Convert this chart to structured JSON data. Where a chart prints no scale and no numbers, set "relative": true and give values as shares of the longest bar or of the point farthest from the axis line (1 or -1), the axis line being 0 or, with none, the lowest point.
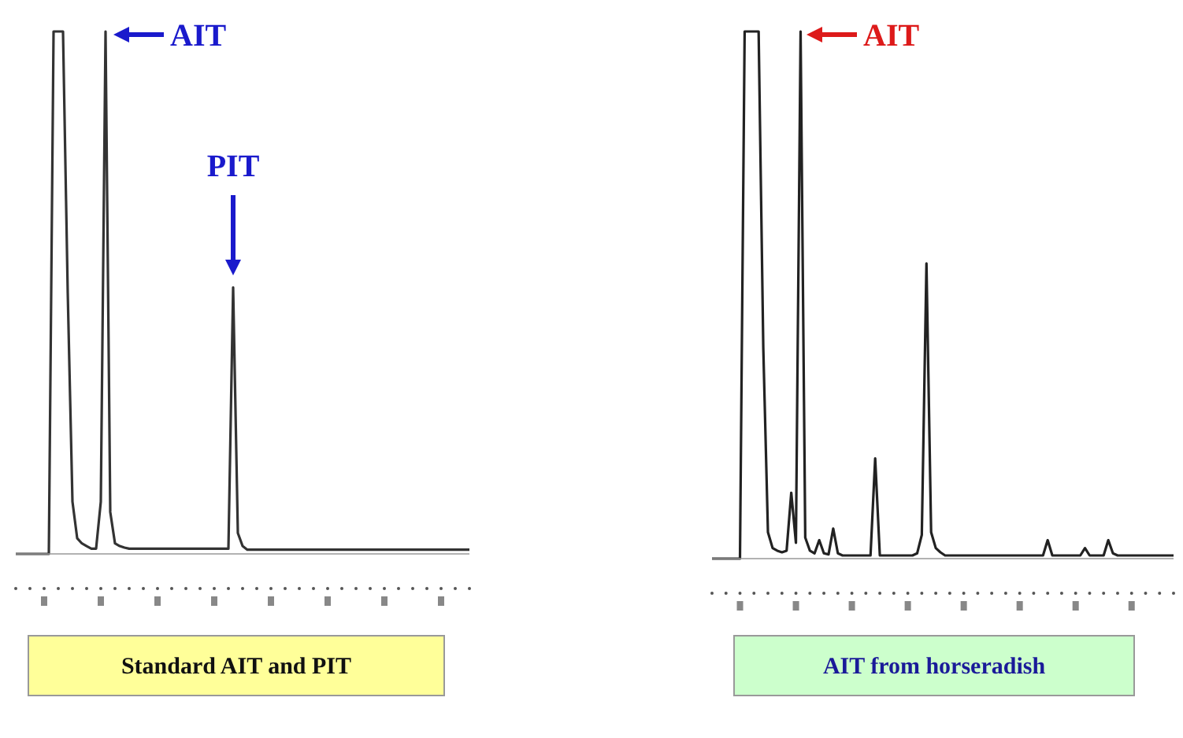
{
  "chart_data": [
    {
      "type": "line",
      "relative": true,
      "title": "Standard AIT and PIT",
      "annotations": [
        "AIT",
        "PIT"
      ],
      "marker": "none",
      "categories": [
        null,
        null,
        null,
        null,
        null,
        null,
        null,
        null,
        null,
        null,
        null,
        null,
        null,
        null,
        null,
        null,
        null,
        null,
        null,
        null,
        null,
        null,
        null,
        null,
        null,
        null,
        null,
        null,
        null,
        null,
        null,
        null,
        null,
        null,
        null,
        null,
        null,
        null,
        null,
        null,
        null,
        null,
        null,
        null,
        null,
        null,
        null,
        null,
        null,
        null,
        null,
        null,
        null,
        null,
        null,
        null,
        null,
        null,
        null,
        null,
        null,
        null,
        null,
        null,
        null,
        null,
        null,
        null,
        null,
        null,
        null,
        null,
        null,
        null,
        null,
        null,
        null,
        null,
        null,
        null,
        null,
        null,
        null,
        null,
        null,
        null,
        null,
        null,
        null,
        null,
        null,
        null,
        null,
        null,
        null,
        null,
        null
      ],
      "series": [
        {
          "color": "#333333",
          "values": [
            0,
            0,
            0,
            0,
            0,
            0,
            0,
            0,
            1,
            1,
            1,
            0.5,
            0.1,
            0.03,
            0.02,
            0.015,
            0.01,
            0.01,
            0.1,
            1,
            0.08,
            0.02,
            0.015,
            0.012,
            0.01,
            0.01,
            0.01,
            0.01,
            0.01,
            0.01,
            0.01,
            0.01,
            0.01,
            0.01,
            0.01,
            0.01,
            0.01,
            0.01,
            0.01,
            0.01,
            0.01,
            0.01,
            0.01,
            0.01,
            0.01,
            0.01,
            0.51,
            0.04,
            0.015,
            0.008,
            0.008,
            0.008,
            0.008,
            0.008,
            0.008,
            0.008,
            0.008,
            0.008,
            0.008,
            0.008,
            0.008,
            0.008,
            0.008,
            0.008,
            0.008,
            0.008,
            0.008,
            0.008,
            0.008,
            0.008,
            0.008,
            0.008,
            0.008,
            0.008,
            0.008,
            0.008,
            0.008,
            0.008,
            0.008,
            0.008,
            0.008,
            0.008,
            0.008,
            0.008,
            0.008,
            0.008,
            0.008,
            0.008,
            0.008,
            0.008,
            0.008,
            0.008,
            0.008,
            0.008,
            0.008,
            0.008,
            0.008
          ]
        }
      ]
    },
    {
      "type": "line",
      "relative": true,
      "title": "AIT from horseradish",
      "annotations": [
        "AIT"
      ],
      "marker": "none",
      "categories": [
        null,
        null,
        null,
        null,
        null,
        null,
        null,
        null,
        null,
        null,
        null,
        null,
        null,
        null,
        null,
        null,
        null,
        null,
        null,
        null,
        null,
        null,
        null,
        null,
        null,
        null,
        null,
        null,
        null,
        null,
        null,
        null,
        null,
        null,
        null,
        null,
        null,
        null,
        null,
        null,
        null,
        null,
        null,
        null,
        null,
        null,
        null,
        null,
        null,
        null,
        null,
        null,
        null,
        null,
        null,
        null,
        null,
        null,
        null,
        null,
        null,
        null,
        null,
        null,
        null,
        null,
        null,
        null,
        null,
        null,
        null,
        null,
        null,
        null,
        null,
        null,
        null,
        null,
        null,
        null,
        null,
        null,
        null,
        null,
        null,
        null,
        null,
        null,
        null,
        null,
        null,
        null,
        null,
        null,
        null,
        null,
        null,
        null,
        null,
        null
      ],
      "series": [
        {
          "color": "#222222",
          "values": [
            0,
            0,
            0,
            0,
            0,
            0,
            0,
            1,
            1,
            1,
            1,
            0.4,
            0.05,
            0.02,
            0.015,
            0.012,
            0.015,
            0.125,
            0.03,
            1,
            0.04,
            0.015,
            0.01,
            0.035,
            0.01,
            0.008,
            0.057,
            0.01,
            0.006,
            0.006,
            0.006,
            0.006,
            0.006,
            0.006,
            0.006,
            0.19,
            0.006,
            0.006,
            0.006,
            0.006,
            0.006,
            0.006,
            0.006,
            0.006,
            0.01,
            0.045,
            0.56,
            0.05,
            0.02,
            0.012,
            0.006,
            0.006,
            0.006,
            0.006,
            0.006,
            0.006,
            0.006,
            0.006,
            0.006,
            0.006,
            0.006,
            0.006,
            0.006,
            0.006,
            0.006,
            0.006,
            0.006,
            0.006,
            0.006,
            0.006,
            0.006,
            0.006,
            0.035,
            0.006,
            0.006,
            0.006,
            0.006,
            0.006,
            0.006,
            0.006,
            0.02,
            0.006,
            0.006,
            0.006,
            0.006,
            0.035,
            0.01,
            0.006,
            0.006,
            0.006,
            0.006,
            0.006,
            0.006,
            0.006,
            0.006,
            0.006,
            0.006,
            0.006,
            0.006,
            0.006
          ]
        }
      ]
    }
  ]
}
